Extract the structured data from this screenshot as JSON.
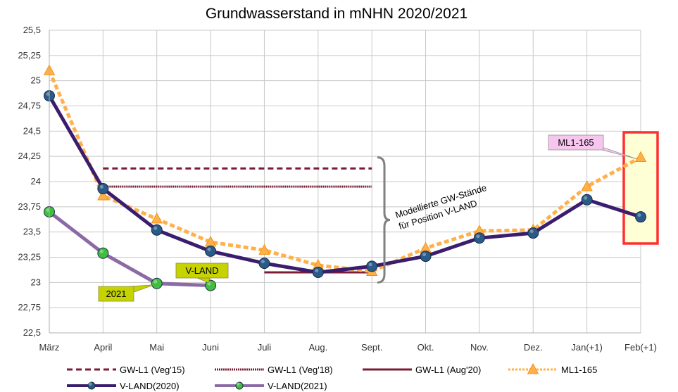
{
  "chart_data": {
    "type": "line",
    "title": "Grundwasserstand in mNHN 2020/2021",
    "xlabel": "",
    "ylabel": "",
    "categories": [
      "März",
      "April",
      "Mai",
      "Juni",
      "Juli",
      "Aug.",
      "Sept.",
      "Okt.",
      "Nov.",
      "Dez.",
      "Jan(+1)",
      "Feb(+1)"
    ],
    "ylim": [
      22.5,
      25.5
    ],
    "yticks": [
      "25,5",
      "25,25",
      "25",
      "24,75",
      "24,5",
      "24,25",
      "24",
      "23,75",
      "23,5",
      "23,25",
      "23",
      "22,75",
      "22,5"
    ],
    "grid": true,
    "legend_position": "bottom",
    "reference_lines": [
      {
        "name": "GW-L1 (Veg'15)",
        "value": 24.13,
        "from": "April",
        "to": "Sept.",
        "color": "#7b1c34",
        "style": "dashed"
      },
      {
        "name": "GW-L1 (Veg'18)",
        "value": 23.95,
        "from": "April",
        "to": "Sept.",
        "color": "#7b1c34",
        "style": "dotted"
      },
      {
        "name": "GW-L1 (Aug'20)",
        "value": 23.1,
        "from": "Juli",
        "to": "Sept.",
        "color": "#7b1c34",
        "style": "solid"
      }
    ],
    "series": [
      {
        "name": "ML1-165",
        "color": "#ffb04a",
        "marker": "triangle",
        "style": "dotted",
        "values": [
          25.1,
          23.86,
          23.63,
          23.4,
          23.32,
          23.17,
          23.11,
          23.34,
          23.51,
          23.52,
          23.95,
          24.24
        ]
      },
      {
        "name": "V-LAND(2020)",
        "color": "#3b1d6e",
        "marker": "circle",
        "markerColor": "#2a5a8a",
        "style": "solid",
        "values": [
          24.85,
          23.93,
          23.52,
          23.31,
          23.19,
          23.1,
          23.16,
          23.26,
          23.44,
          23.49,
          23.82,
          23.65
        ]
      },
      {
        "name": "V-LAND(2021)",
        "color": "#8b6aa6",
        "marker": "circle",
        "markerColor": "#3fbf3f",
        "style": "solid",
        "values": [
          23.7,
          23.29,
          22.99,
          22.97,
          null,
          null,
          null,
          null,
          null,
          null,
          null,
          null
        ]
      }
    ],
    "annotations": {
      "brace_label_lines": [
        "Modellierte GW-Stände",
        "für Position V-LAND"
      ],
      "callout_2021": "2021",
      "callout_vland": "V-LAND",
      "callout_ml1": "ML1-165"
    },
    "colors": {
      "callout_green": "#c6d300",
      "callout_pink": "#f7c6ef",
      "highlight_box": "#ff3030",
      "highlight_fill": "#ffffd5",
      "brace": "#808080"
    }
  }
}
